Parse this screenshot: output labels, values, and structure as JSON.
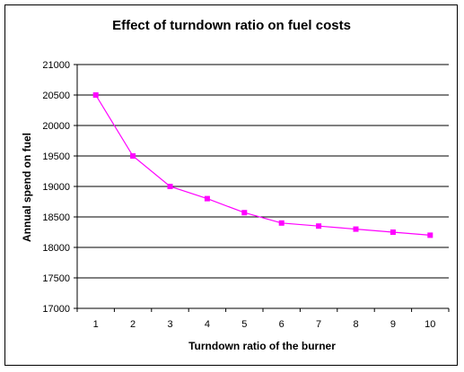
{
  "chart_data": {
    "type": "line",
    "title": "Effect of turndown ratio on fuel costs",
    "xlabel": "Turndown ratio of the burner",
    "ylabel": "Annual spend on fuel",
    "categories": [
      "1",
      "2",
      "3",
      "4",
      "5",
      "6",
      "7",
      "8",
      "9",
      "10"
    ],
    "series": [
      {
        "values": [
          20500,
          19500,
          19000,
          18800,
          18570,
          18400,
          18350,
          18300,
          18250,
          18200
        ],
        "color": "#ff00ff"
      }
    ],
    "ylim": [
      17000,
      21000
    ],
    "yticks": [
      17000,
      17500,
      18000,
      18500,
      19000,
      19500,
      20000,
      20500,
      21000
    ],
    "grid": true,
    "legend": "none"
  }
}
